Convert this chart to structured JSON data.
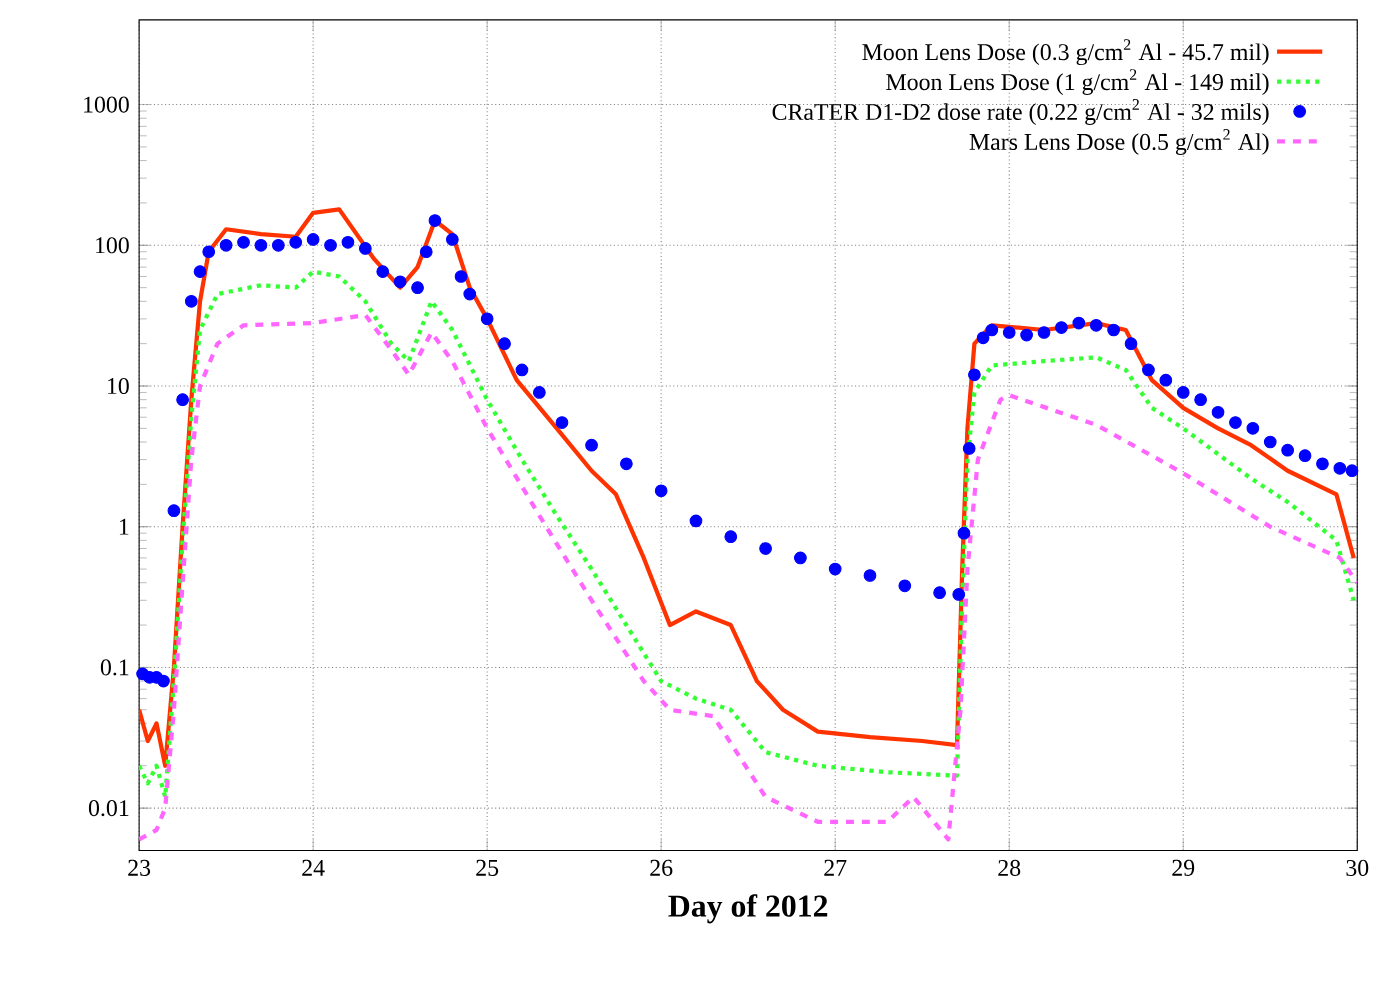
{
  "chart_data": {
    "type": "line",
    "xlabel": "Day of 2012",
    "log": "y",
    "grid": true,
    "legend": "top right",
    "xlim": [
      23,
      30
    ],
    "xticks": [
      23,
      24,
      25,
      26,
      27,
      28,
      29,
      30
    ],
    "ylim": [
      0.005,
      4000
    ],
    "yticks": [
      0.01,
      0.1,
      1,
      10,
      100,
      1000
    ],
    "series": [
      {
        "name": "Moon Lens Dose (0.3 g/cm$^{2}$ Al - 45.7 mil)",
        "line_style": "solid",
        "marker": "none",
        "color": "#ff3300",
        "x": [
          23.0,
          23.05,
          23.1,
          23.15,
          23.2,
          23.25,
          23.3,
          23.35,
          23.4,
          23.5,
          23.7,
          23.9,
          24.0,
          24.15,
          24.25,
          24.35,
          24.5,
          24.6,
          24.7,
          24.8,
          24.9,
          25.0,
          25.17,
          25.4,
          25.6,
          25.74,
          25.9,
          26.05,
          26.2,
          26.4,
          26.55,
          26.7,
          26.9,
          27.2,
          27.5,
          27.7,
          27.73,
          27.76,
          27.8,
          27.9,
          28.2,
          28.5,
          28.67,
          28.82,
          29.0,
          29.2,
          29.39,
          29.6,
          29.88,
          29.98
        ],
        "values": [
          0.05,
          0.03,
          0.04,
          0.02,
          0.1,
          1,
          8,
          40,
          90,
          130,
          120,
          115,
          170,
          180,
          120,
          80,
          50,
          70,
          150,
          120,
          50,
          30,
          11,
          5,
          2.5,
          1.7,
          0.6,
          0.2,
          0.25,
          0.2,
          0.08,
          0.05,
          0.035,
          0.032,
          0.03,
          0.028,
          0.5,
          5,
          20,
          27,
          25,
          28,
          25,
          11,
          7,
          5,
          3.8,
          2.5,
          1.7,
          0.6
        ]
      },
      {
        "name": "Moon Lens Dose (1 g/cm$^{2}$ Al - 149 mil)",
        "line_style": "dotted",
        "marker": "none",
        "color": "#33ff33",
        "x": [
          23.0,
          23.05,
          23.1,
          23.15,
          23.2,
          23.25,
          23.3,
          23.35,
          23.45,
          23.7,
          23.9,
          24.0,
          24.15,
          24.3,
          24.45,
          24.55,
          24.68,
          24.8,
          25.0,
          25.2,
          25.4,
          25.6,
          25.8,
          26.0,
          26.2,
          26.4,
          26.6,
          26.9,
          27.3,
          27.7,
          27.73,
          27.76,
          27.8,
          27.9,
          28.2,
          28.5,
          28.67,
          28.82,
          29.0,
          29.39,
          29.6,
          29.88,
          29.98
        ],
        "values": [
          0.02,
          0.015,
          0.02,
          0.012,
          0.08,
          0.8,
          6,
          25,
          45,
          52,
          50,
          65,
          60,
          40,
          20,
          15,
          40,
          25,
          8,
          3,
          1.2,
          0.5,
          0.2,
          0.08,
          0.06,
          0.05,
          0.025,
          0.02,
          0.018,
          0.017,
          0.3,
          3,
          9,
          14,
          15,
          16,
          13,
          7,
          5,
          2.2,
          1.5,
          0.8,
          0.3
        ]
      },
      {
        "name": "CRaTER D1-D2 dose rate (0.22 g/cm$^{2}$ Al - 32 mils)",
        "type": "scatter",
        "marker": "circle",
        "color": "#0000ff",
        "x": [
          23.02,
          23.06,
          23.1,
          23.14,
          23.2,
          23.25,
          23.3,
          23.35,
          23.4,
          23.5,
          23.6,
          23.7,
          23.8,
          23.9,
          24.0,
          24.1,
          24.2,
          24.3,
          24.4,
          24.5,
          24.6,
          24.65,
          24.7,
          24.8,
          24.85,
          24.9,
          25.0,
          25.1,
          25.2,
          25.3,
          25.43,
          25.6,
          25.8,
          26.0,
          26.2,
          26.4,
          26.6,
          26.8,
          27.0,
          27.2,
          27.4,
          27.6,
          27.71,
          27.74,
          27.77,
          27.8,
          27.85,
          27.9,
          28.0,
          28.1,
          28.2,
          28.3,
          28.4,
          28.5,
          28.6,
          28.7,
          28.8,
          28.9,
          29.0,
          29.1,
          29.2,
          29.3,
          29.4,
          29.5,
          29.6,
          29.7,
          29.8,
          29.9,
          29.97
        ],
        "values": [
          0.09,
          0.085,
          0.085,
          0.08,
          1.3,
          8,
          40,
          65,
          90,
          100,
          105,
          100,
          100,
          105,
          110,
          100,
          105,
          95,
          65,
          55,
          50,
          90,
          150,
          110,
          60,
          45,
          30,
          20,
          13,
          9,
          5.5,
          3.8,
          2.8,
          1.8,
          1.1,
          0.85,
          0.7,
          0.6,
          0.5,
          0.45,
          0.38,
          0.34,
          0.33,
          0.9,
          3.6,
          12,
          22,
          25,
          24,
          23,
          24,
          26,
          28,
          27,
          25,
          20,
          13,
          11,
          9,
          8,
          6.5,
          5.5,
          5,
          4,
          3.5,
          3.2,
          2.8,
          2.6,
          2.5
        ]
      },
      {
        "name": "Mars Lens Dose (0.5 g/cm$^{2}$ Al)",
        "line_style": "dashed",
        "marker": "none",
        "color": "#ff66ff",
        "x": [
          23.0,
          23.1,
          23.15,
          23.2,
          23.25,
          23.3,
          23.35,
          23.45,
          23.6,
          24.0,
          24.3,
          24.45,
          24.55,
          24.68,
          24.8,
          25.0,
          25.3,
          25.6,
          25.9,
          26.05,
          26.3,
          26.6,
          26.9,
          27.3,
          27.45,
          27.65,
          27.72,
          27.76,
          27.82,
          27.95,
          28.0,
          28.5,
          29.0,
          29.5,
          29.9,
          30.0
        ],
        "values": [
          0.006,
          0.007,
          0.01,
          0.05,
          0.4,
          3,
          10,
          20,
          27,
          28,
          32,
          18,
          12,
          24,
          15,
          5,
          1.2,
          0.3,
          0.08,
          0.05,
          0.045,
          0.012,
          0.008,
          0.008,
          0.012,
          0.006,
          0.05,
          0.5,
          3,
          8,
          8.6,
          5.3,
          2.4,
          1,
          0.6,
          0.4
        ]
      }
    ]
  }
}
